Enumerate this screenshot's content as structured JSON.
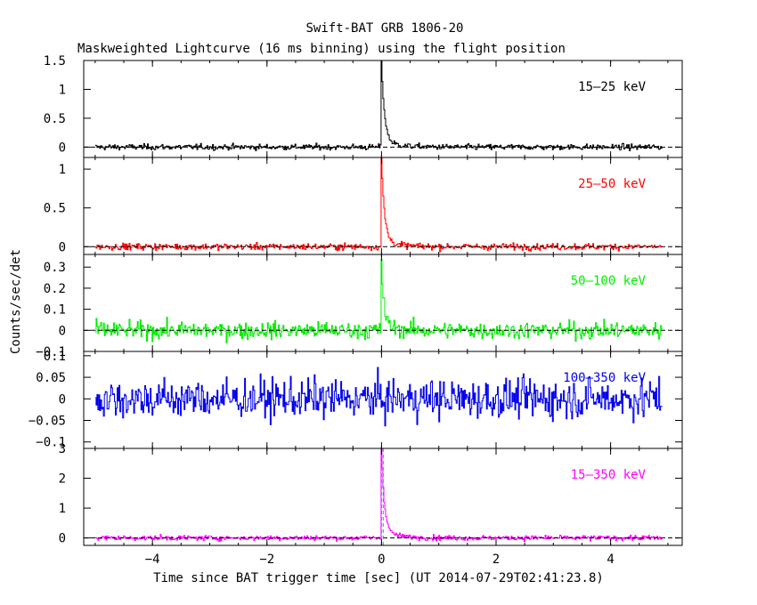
{
  "chart_data": {
    "type": "line",
    "title": "Swift-BAT GRB 1806-20",
    "subtitle": "Maskweighted Lightcurve (16 ms binning) using the flight position",
    "xlabel": "Time since BAT trigger time [sec] (UT 2014-07-29T02:41:23.8)",
    "ylabel": "Counts/sec/det",
    "xlim": [
      -5.2,
      5.25
    ],
    "xticks": [
      -4,
      -2,
      0,
      2,
      4
    ],
    "grid": false,
    "panels": [
      {
        "name": "15-25 keV",
        "label": "15–25 keV",
        "color": "#000000",
        "ylim": [
          -0.18,
          1.5
        ],
        "yticks": [
          0,
          0.5,
          1,
          1.5
        ],
        "yticklabels": [
          "0",
          "0.5",
          "1",
          "1.5"
        ],
        "noise": 0.035,
        "peak": 1.5,
        "decay": 0.05,
        "zero_line": true
      },
      {
        "name": "25-50 keV",
        "label": "25–50 keV",
        "color": "#ff0000",
        "ylim": [
          -0.1,
          1.15
        ],
        "yticks": [
          0,
          0.5,
          1
        ],
        "yticklabels": [
          "0",
          "0.5",
          "1"
        ],
        "noise": 0.03,
        "peak": 1.12,
        "decay": 0.05,
        "zero_line": true
      },
      {
        "name": "50-100 keV",
        "label": "50–100 keV",
        "color": "#00ee00",
        "ylim": [
          -0.1,
          0.36
        ],
        "yticks": [
          -0.1,
          0,
          0.1,
          0.2,
          0.3
        ],
        "yticklabels": [
          "−0.1",
          "0",
          "0.1",
          "0.2",
          "0.3"
        ],
        "noise": 0.028,
        "peak": 0.33,
        "decay": 0.04,
        "zero_line": true
      },
      {
        "name": "100-350 keV",
        "label": "100–350 keV",
        "color": "#0000ee",
        "ylim": [
          -0.115,
          0.11
        ],
        "yticks": [
          -0.1,
          -0.05,
          0,
          0.05,
          0.1
        ],
        "yticklabels": [
          "−0.1",
          "−0.05",
          "0",
          "0.05",
          "0.1"
        ],
        "noise": 0.032,
        "peak": 0.0,
        "decay": 0.05,
        "zero_line": false
      },
      {
        "name": "15-350 keV",
        "label": "15–350 keV",
        "color": "#ff00ff",
        "ylim": [
          -0.25,
          3.0
        ],
        "yticks": [
          0,
          1,
          2,
          3
        ],
        "yticklabels": [
          "0",
          "1",
          "2",
          "3"
        ],
        "noise": 0.06,
        "peak": 3.0,
        "decay": 0.05,
        "zero_line": true,
        "markers": [
          0.0,
          0.03
        ]
      }
    ],
    "bin_width": 0.016,
    "x_start": -5.0,
    "x_end": 4.9
  }
}
